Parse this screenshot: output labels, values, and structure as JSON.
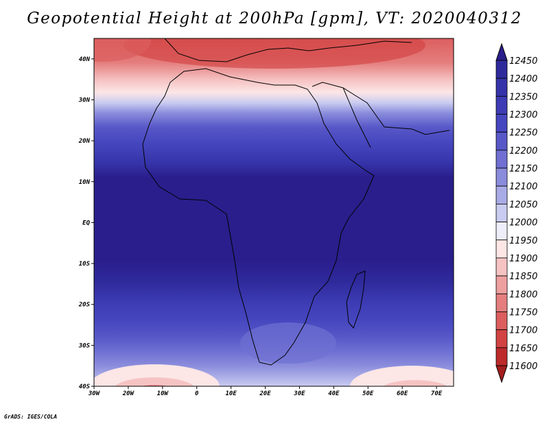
{
  "title": "Geopotential Height at 200hPa [gpm], VT: 2020040312",
  "credit": "GrADS: IGES/COLA",
  "map": {
    "lat_labels": [
      "40N",
      "30N",
      "20N",
      "10N",
      "EQ",
      "10S",
      "20S",
      "30S",
      "40S"
    ],
    "lon_labels": [
      "30W",
      "20W",
      "10W",
      "0",
      "10E",
      "20E",
      "30E",
      "40E",
      "50E",
      "60E",
      "70E"
    ],
    "extent": {
      "lon_min": -30,
      "lon_max": 75,
      "lat_min": -40,
      "lat_max": 45
    }
  },
  "colorbar": {
    "labels": [
      "12450",
      "12400",
      "12350",
      "12300",
      "12250",
      "12200",
      "12150",
      "12100",
      "12050",
      "12000",
      "11950",
      "11900",
      "11850",
      "11800",
      "11750",
      "11700",
      "11650",
      "11600"
    ],
    "colors": [
      "#2a1e8c",
      "#2f2a9c",
      "#3533a8",
      "#3d3cb4",
      "#4646bf",
      "#5858c8",
      "#6f70d2",
      "#8a8cdc",
      "#a9abe6",
      "#c9cbf0",
      "#eeeefa",
      "#fce6e6",
      "#f6c3c3",
      "#eea0a0",
      "#e57e7e",
      "#dc5e5e",
      "#d24343",
      "#bd2b2b",
      "#a31d1d"
    ]
  }
}
